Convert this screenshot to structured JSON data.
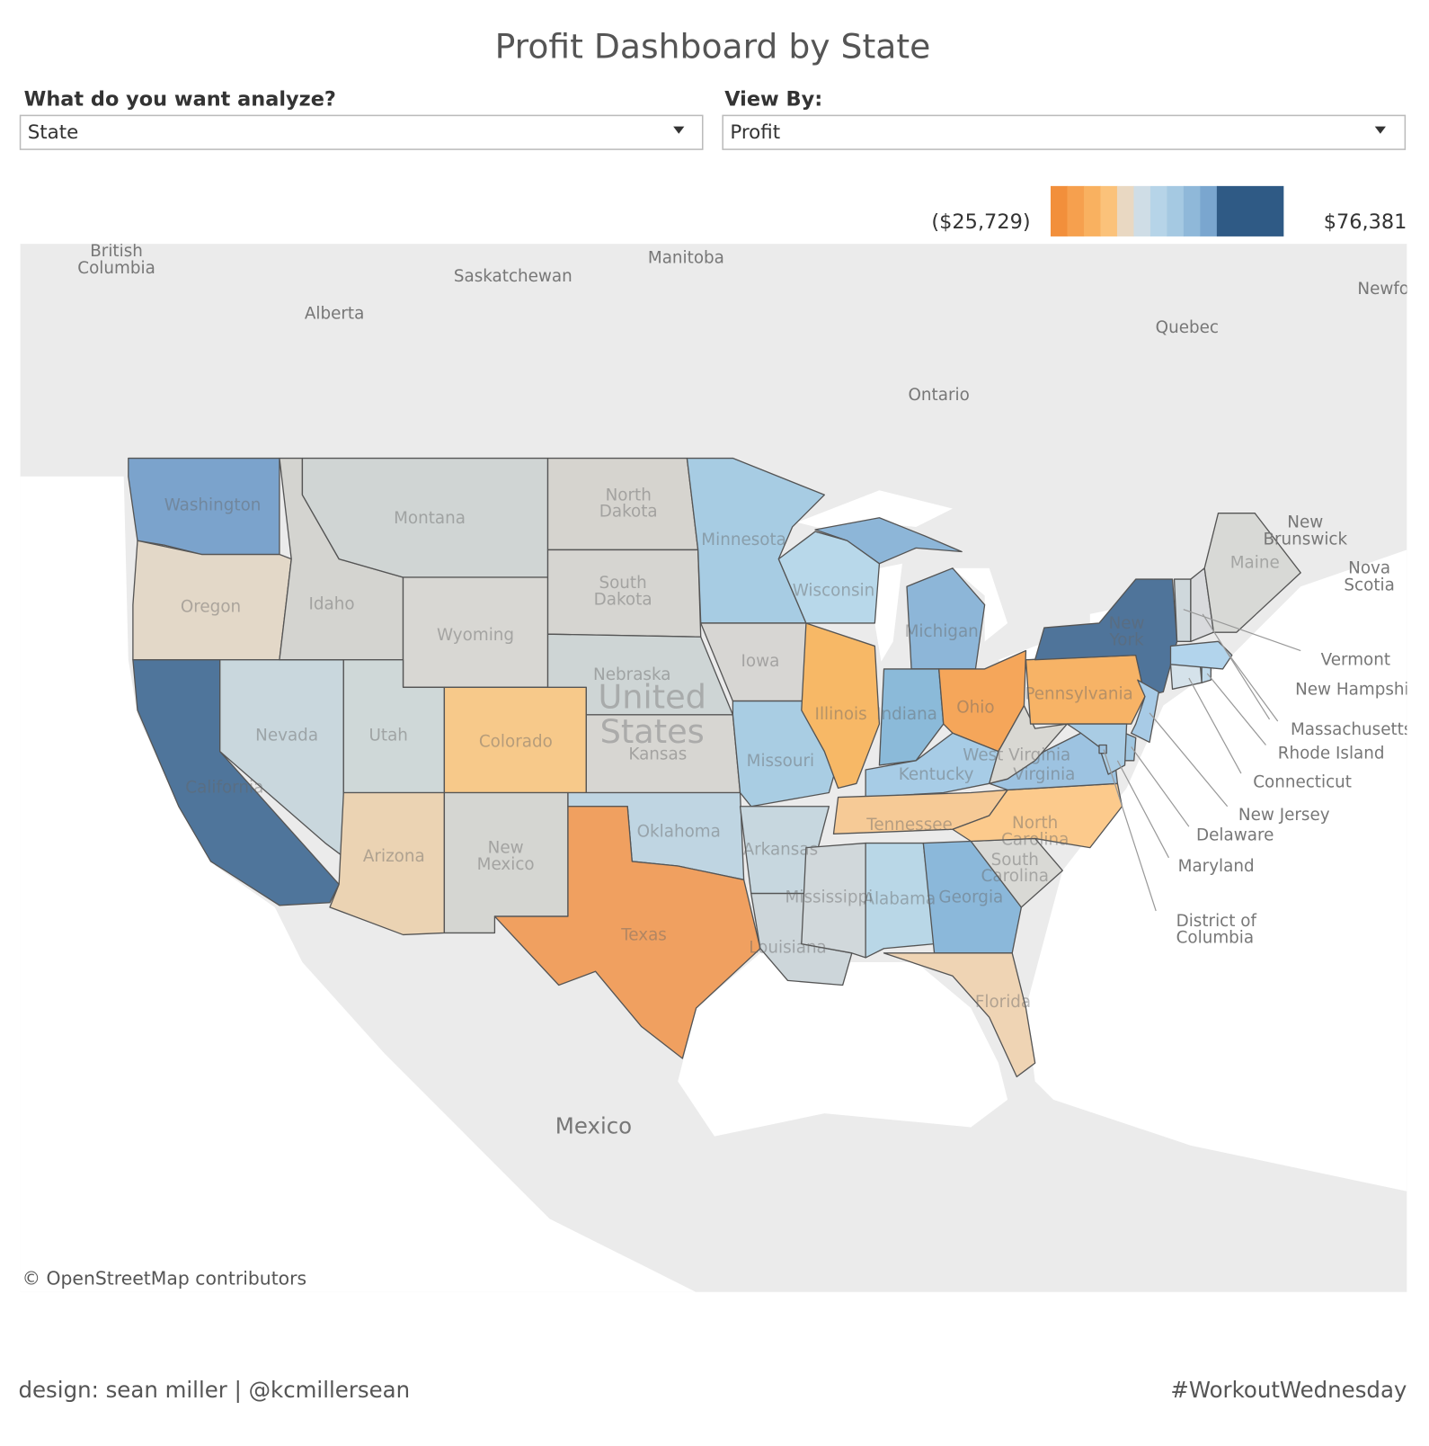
{
  "title": "Profit Dashboard by State",
  "filters": [
    {
      "label": "What do you want analyze?",
      "value": "State"
    },
    {
      "label": "View By:",
      "value": "Profit"
    }
  ],
  "legend": {
    "min_label": "($25,729)",
    "max_label": "$76,381",
    "colors": [
      "#f28f3b",
      "#f6a04e",
      "#f9b160",
      "#fbc27a",
      "#e9d8c2",
      "#cfdde6",
      "#b6d4e8",
      "#a5c9e2",
      "#8fb8d9",
      "#7aa6cf",
      "#2f5a85"
    ]
  },
  "map": {
    "states": [
      {
        "name": "Washington",
        "color": "#7ba3cc"
      },
      {
        "name": "Oregon",
        "color": "#e3d8c8"
      },
      {
        "name": "California",
        "color": "#4f759b"
      },
      {
        "name": "Nevada",
        "color": "#c9d7dd"
      },
      {
        "name": "Idaho",
        "color": "#d4d4d0"
      },
      {
        "name": "Montana",
        "color": "#d0d5d4"
      },
      {
        "name": "Wyoming",
        "color": "#d8d7d3"
      },
      {
        "name": "Utah",
        "color": "#cfd8d8"
      },
      {
        "name": "Colorado",
        "color": "#f7c98a"
      },
      {
        "name": "Arizona",
        "color": "#ebd3b3"
      },
      {
        "name": "New Mexico",
        "color": "#d5d6d2"
      },
      {
        "name": "North Dakota",
        "color": "#d6d4cf"
      },
      {
        "name": "South Dakota",
        "color": "#d6d5d1"
      },
      {
        "name": "Nebraska",
        "color": "#ced5d5"
      },
      {
        "name": "Kansas",
        "color": "#d7d6d2"
      },
      {
        "name": "Oklahoma",
        "color": "#bfd5e2"
      },
      {
        "name": "Texas",
        "color": "#f0a060"
      },
      {
        "name": "Minnesota",
        "color": "#a7cce3"
      },
      {
        "name": "Iowa",
        "color": "#d7d6d3"
      },
      {
        "name": "Missouri",
        "color": "#a9cde3"
      },
      {
        "name": "Arkansas",
        "color": "#c7d7df"
      },
      {
        "name": "Louisiana",
        "color": "#cdd6da"
      },
      {
        "name": "Wisconsin",
        "color": "#b8d8ea"
      },
      {
        "name": "Illinois",
        "color": "#f7b866"
      },
      {
        "name": "Michigan",
        "color": "#8db6d8"
      },
      {
        "name": "Indiana",
        "color": "#8bbad9"
      },
      {
        "name": "Ohio",
        "color": "#f5a65a"
      },
      {
        "name": "Kentucky",
        "color": "#a7cce6"
      },
      {
        "name": "Tennessee",
        "color": "#f6ca96"
      },
      {
        "name": "Mississippi",
        "color": "#d1d8db"
      },
      {
        "name": "Alabama",
        "color": "#b9d7e7"
      },
      {
        "name": "Georgia",
        "color": "#8bb8da"
      },
      {
        "name": "Florida",
        "color": "#efd4b4"
      },
      {
        "name": "South Carolina",
        "color": "#d9d9d5"
      },
      {
        "name": "North Carolina",
        "color": "#fcca8c"
      },
      {
        "name": "Virginia",
        "color": "#9dc3e1"
      },
      {
        "name": "West Virginia",
        "color": "#d9d8d3"
      },
      {
        "name": "Pennsylvania",
        "color": "#f7b366"
      },
      {
        "name": "New York",
        "color": "#4f749a"
      },
      {
        "name": "New Jersey",
        "color": "#a8cbe6"
      },
      {
        "name": "Delaware",
        "color": "#a0c6e0"
      },
      {
        "name": "Maryland",
        "color": "#a9cce4"
      },
      {
        "name": "District of Columbia",
        "color": "#9cc2e0"
      },
      {
        "name": "Connecticut",
        "color": "#d5e2ea"
      },
      {
        "name": "Rhode Island",
        "color": "#c0d9ea"
      },
      {
        "name": "Massachusetts",
        "color": "#b2d4ec"
      },
      {
        "name": "Vermont",
        "color": "#cfd8dc"
      },
      {
        "name": "New Hampshire",
        "color": "#d9dadd"
      },
      {
        "name": "Maine",
        "color": "#d8d9d6"
      }
    ],
    "region_labels": [
      "British Columbia",
      "Alberta",
      "Saskatchewan",
      "Manitoba",
      "Ontario",
      "Quebec",
      "New Brunswick",
      "Nova Scotia",
      "Newfoundland and Labrador",
      "United States",
      "Mexico"
    ],
    "attribution": "© OpenStreetMap contributors"
  },
  "footer": {
    "left": "design: sean miller | @kcmillersean",
    "right": "#WorkoutWednesday"
  }
}
